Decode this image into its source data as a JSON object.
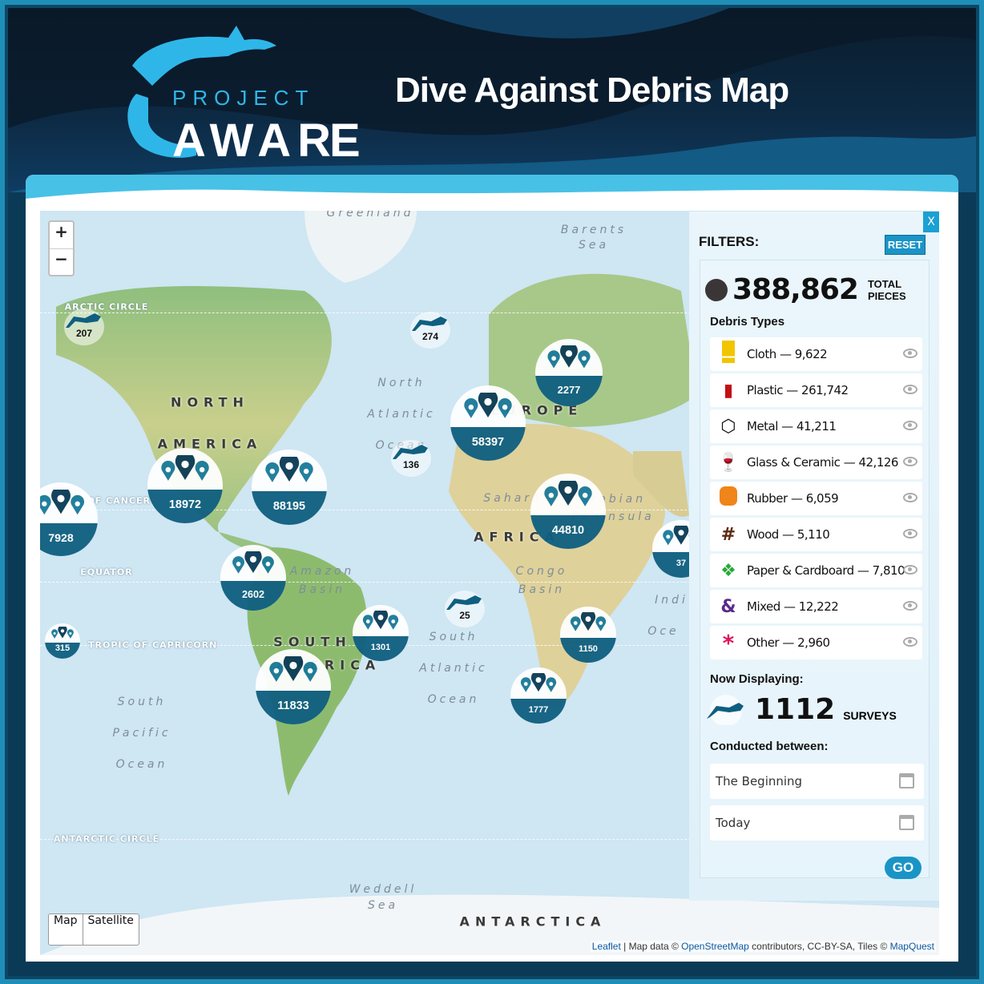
{
  "header": {
    "logo_text": "PROJECT AWARE",
    "title": "Dive Against Debris Map"
  },
  "map": {
    "zoom_in": "+",
    "zoom_out": "−",
    "layers": [
      "Map",
      "Satellite"
    ],
    "attribution": {
      "leaflet": "Leaflet",
      "sep": " | Map data © ",
      "osm": "OpenStreetMap",
      "rest": " contributors, CC-BY-SA, Tiles © ",
      "mapquest": "MapQuest"
    },
    "labels": [
      "Greenland",
      "Barents",
      "Sea",
      "North",
      "Atlantic",
      "Ocean",
      "Sahara",
      "Arabian",
      "Peninsula",
      "Amazon",
      "Basin",
      "Congo",
      "Basin",
      "Indi",
      "Oce",
      "South",
      "Atlantic",
      "Ocean",
      "South",
      "Pacific",
      "Ocean",
      "Weddell",
      "Sea"
    ],
    "caps": [
      "NORTH",
      "AMERICA",
      "EUROPE",
      "AFRICA",
      "SOUTH",
      "AMERICA",
      "ANTARCTICA"
    ],
    "circles": [
      "ARCTIC CIRCLE",
      "TROPIC OF CANCER",
      "EQUATOR",
      "TROPIC OF CAPRICORN",
      "ANTARCTIC CIRCLE"
    ],
    "clusters": [
      "2277",
      "58397",
      "18972",
      "88195",
      "7928",
      "44810",
      "37",
      "2602",
      "1301",
      "1150",
      "11833",
      "1777",
      "315"
    ],
    "divers": [
      "207",
      "274",
      "136",
      "25"
    ],
    "colors": {
      "cluster_sea": "#0f5f80",
      "pin_dark": "#0b3b55",
      "pin_light": "#1a7a9a"
    }
  },
  "panel": {
    "close": "X",
    "title": "FILTERS:",
    "reset": "RESET",
    "total": "388,862",
    "total_label_1": "TOTAL",
    "total_label_2": "PIECES",
    "debris_heading": "Debris Types",
    "types": [
      {
        "label": "Cloth — 9,622",
        "icon": "cloth-icon"
      },
      {
        "label": "Plastic — 261,742",
        "icon": "bottle-icon"
      },
      {
        "label": "Metal — 41,211",
        "icon": "hex-nut-icon"
      },
      {
        "label": "Glass & Ceramic — 42,126",
        "icon": "wine-glass-icon"
      },
      {
        "label": "Rubber — 6,059",
        "icon": "tire-icon"
      },
      {
        "label": "Wood — 5,110",
        "icon": "wood-grid-icon"
      },
      {
        "label": "Paper & Cardboard — 7,810",
        "icon": "box-icon"
      },
      {
        "label": "Mixed — 12,222",
        "icon": "ampersand-icon"
      },
      {
        "label": "Other — 2,960",
        "icon": "asterisk-icon"
      }
    ],
    "now_displaying": "Now Displaying:",
    "surveys": "1112",
    "surveys_label": "SURVEYS",
    "conducted": "Conducted between:",
    "from": "The Beginning",
    "to": "Today",
    "go": "GO",
    "accent": "#1a94c6"
  }
}
